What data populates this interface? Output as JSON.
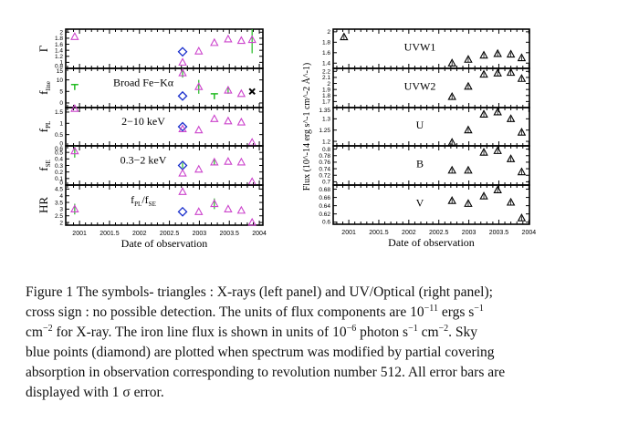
{
  "chart_data": [
    {
      "type": "scatter",
      "name": "xray-panel",
      "xlabel": "Date of observation",
      "xlim": [
        2000.77,
        2004.06
      ],
      "xticks": [
        "2001",
        "2001.5",
        "2002",
        "2002.5",
        "2003",
        "2003.5",
        "2004"
      ],
      "xtick_values": [
        2001,
        2001.5,
        2002,
        2002.5,
        2003,
        2003.5,
        2004
      ],
      "colors": {
        "triangle": "#cc44cc",
        "diamond": "#1a2fcc",
        "error": "#22bb22",
        "cross": "#000000"
      },
      "panels": [
        {
          "ylabel": "Γ",
          "ylabel_sub": "",
          "annotation": "",
          "ylim": [
            0.8,
            2.1
          ],
          "yticks": [
            "0.8",
            "1",
            "1.2",
            "1.4",
            "1.6",
            "1.8",
            "2"
          ],
          "ytick_values": [
            0.8,
            1,
            1.2,
            1.4,
            1.6,
            1.8,
            2
          ],
          "points": [
            {
              "x": 2000.92,
              "y": 1.85,
              "marker": "triangle"
            },
            {
              "x": 2002.72,
              "y": 1.35,
              "marker": "diamond"
            },
            {
              "x": 2002.72,
              "y": 1.0,
              "marker": "triangle"
            },
            {
              "x": 2002.99,
              "y": 1.37,
              "marker": "triangle"
            },
            {
              "x": 2003.25,
              "y": 1.65,
              "marker": "triangle"
            },
            {
              "x": 2003.48,
              "y": 1.77,
              "marker": "triangle"
            },
            {
              "x": 2003.7,
              "y": 1.72,
              "marker": "triangle"
            },
            {
              "x": 2003.88,
              "y": 1.75,
              "marker": "triangle",
              "err": [
                1.3,
                2.1
              ]
            }
          ]
        },
        {
          "ylabel": "f",
          "ylabel_sub": "line",
          "annotation": "Broad Fe−Kα",
          "ylim": [
            -2,
            15
          ],
          "yticks": [
            "0",
            "5",
            "10",
            "15"
          ],
          "ytick_values": [
            0,
            5,
            10,
            15
          ],
          "points": [
            {
              "x": 2000.92,
              "y": 8,
              "marker": "upper-limit"
            },
            {
              "x": 2002.72,
              "y": 13,
              "marker": "triangle",
              "err": [
                11,
                15
              ]
            },
            {
              "x": 2002.72,
              "y": 3,
              "marker": "diamond"
            },
            {
              "x": 2002.99,
              "y": 7,
              "marker": "triangle",
              "err": [
                4,
                10
              ]
            },
            {
              "x": 2003.25,
              "y": 4,
              "marker": "upper-limit"
            },
            {
              "x": 2003.48,
              "y": 5.5,
              "marker": "triangle",
              "err": [
                4,
                7
              ]
            },
            {
              "x": 2003.7,
              "y": 4,
              "marker": "triangle"
            },
            {
              "x": 2003.88,
              "y": 5,
              "marker": "cross"
            }
          ]
        },
        {
          "ylabel": "f",
          "ylabel_sub": "PL",
          "annotation": "2−10 keV",
          "ylim": [
            0,
            1.7
          ],
          "yticks": [
            "0",
            "0.5",
            "1",
            "1.5"
          ],
          "ytick_values": [
            0,
            0.5,
            1,
            1.5
          ],
          "points": [
            {
              "x": 2000.92,
              "y": 1.65,
              "marker": "triangle"
            },
            {
              "x": 2002.72,
              "y": 0.85,
              "marker": "diamond"
            },
            {
              "x": 2002.72,
              "y": 0.75,
              "marker": "triangle"
            },
            {
              "x": 2002.99,
              "y": 0.7,
              "marker": "triangle"
            },
            {
              "x": 2003.25,
              "y": 1.2,
              "marker": "triangle"
            },
            {
              "x": 2003.48,
              "y": 1.1,
              "marker": "triangle"
            },
            {
              "x": 2003.7,
              "y": 1.05,
              "marker": "triangle"
            },
            {
              "x": 2003.88,
              "y": 0.15,
              "marker": "triangle"
            }
          ]
        },
        {
          "ylabel": "f",
          "ylabel_sub": "SE",
          "annotation": "0.3−2 keV",
          "ylim": [
            0,
            0.6
          ],
          "yticks": [
            "0",
            "0.1",
            "0.2",
            "0.3",
            "0.4",
            "0.5",
            "0.6"
          ],
          "ytick_values": [
            0,
            0.1,
            0.2,
            0.3,
            0.4,
            0.5,
            0.6
          ],
          "points": [
            {
              "x": 2000.92,
              "y": 0.52,
              "marker": "triangle",
              "err": [
                0.42,
                0.6
              ]
            },
            {
              "x": 2002.72,
              "y": 0.3,
              "marker": "diamond",
              "err": [
                0.26,
                0.34
              ]
            },
            {
              "x": 2002.72,
              "y": 0.18,
              "marker": "triangle"
            },
            {
              "x": 2002.99,
              "y": 0.24,
              "marker": "triangle"
            },
            {
              "x": 2003.25,
              "y": 0.35,
              "marker": "triangle",
              "err": [
                0.3,
                0.4
              ]
            },
            {
              "x": 2003.48,
              "y": 0.36,
              "marker": "triangle"
            },
            {
              "x": 2003.7,
              "y": 0.35,
              "marker": "triangle"
            },
            {
              "x": 2003.88,
              "y": 0.05,
              "marker": "triangle"
            }
          ]
        },
        {
          "ylabel": "HR",
          "ylabel_sub": "",
          "annotation": "f_PL/f_SE",
          "annotation_parts": [
            "f",
            "PL",
            "/f",
            "SE"
          ],
          "ylim": [
            1.8,
            4.8
          ],
          "yticks": [
            "2",
            "2.5",
            "3",
            "3.5",
            "4",
            "4.5"
          ],
          "ytick_values": [
            2,
            2.5,
            3,
            3.5,
            4,
            4.5
          ],
          "points": [
            {
              "x": 2000.92,
              "y": 3.0,
              "marker": "triangle",
              "err": [
                2.6,
                3.4
              ]
            },
            {
              "x": 2002.72,
              "y": 4.3,
              "marker": "triangle"
            },
            {
              "x": 2002.72,
              "y": 2.8,
              "marker": "diamond"
            },
            {
              "x": 2002.99,
              "y": 2.8,
              "marker": "triangle"
            },
            {
              "x": 2003.25,
              "y": 3.4,
              "marker": "triangle",
              "err": [
                3.0,
                3.8
              ]
            },
            {
              "x": 2003.48,
              "y": 3.0,
              "marker": "triangle"
            },
            {
              "x": 2003.7,
              "y": 2.9,
              "marker": "triangle"
            },
            {
              "x": 2003.88,
              "y": 2.0,
              "marker": "triangle"
            }
          ]
        }
      ]
    },
    {
      "type": "scatter",
      "name": "uv-optical-panel",
      "xlabel": "Date of observation",
      "ylabel": "Flux (10^-14 erg s^-1 cm^-2 Å^-1)",
      "xlim": [
        2000.74,
        2004.01
      ],
      "xticks": [
        "2001",
        "2001.5",
        "2002",
        "2002.5",
        "2003",
        "2003.5",
        "2004"
      ],
      "xtick_values": [
        2001,
        2001.5,
        2002,
        2002.5,
        2003,
        2003.5,
        2004
      ],
      "colors": {
        "triangle": "#000000"
      },
      "panels": [
        {
          "annotation": "UVW1",
          "ylim": [
            1.3,
            2.05
          ],
          "yticks": [
            "1.4",
            "1.6",
            "1.8",
            "2"
          ],
          "ytick_values": [
            1.4,
            1.6,
            1.8,
            2
          ],
          "points": [
            {
              "x": 2000.92,
              "y": 1.9,
              "marker": "triangle"
            },
            {
              "x": 2002.72,
              "y": 1.4,
              "marker": "triangle"
            },
            {
              "x": 2002.99,
              "y": 1.47,
              "marker": "triangle"
            },
            {
              "x": 2003.25,
              "y": 1.55,
              "marker": "triangle"
            },
            {
              "x": 2003.48,
              "y": 1.58,
              "marker": "triangle"
            },
            {
              "x": 2003.7,
              "y": 1.57,
              "marker": "triangle"
            },
            {
              "x": 2003.88,
              "y": 1.5,
              "marker": "triangle"
            }
          ]
        },
        {
          "annotation": "UVW2",
          "ylim": [
            1.6,
            2.25
          ],
          "yticks": [
            "1.7",
            "1.8",
            "1.9",
            "2",
            "2.1",
            "2.2"
          ],
          "ytick_values": [
            1.7,
            1.8,
            1.9,
            2,
            2.1,
            2.2
          ],
          "points": [
            {
              "x": 2002.72,
              "y": 1.78,
              "marker": "triangle"
            },
            {
              "x": 2002.99,
              "y": 1.95,
              "marker": "triangle"
            },
            {
              "x": 2003.25,
              "y": 2.15,
              "marker": "triangle"
            },
            {
              "x": 2003.48,
              "y": 2.17,
              "marker": "triangle"
            },
            {
              "x": 2003.7,
              "y": 2.18,
              "marker": "triangle"
            },
            {
              "x": 2003.88,
              "y": 2.08,
              "marker": "triangle"
            }
          ]
        },
        {
          "annotation": "U",
          "ylim": [
            1.18,
            1.35
          ],
          "yticks": [
            "1.2",
            "1.25",
            "1.3",
            "1.35"
          ],
          "ytick_values": [
            1.2,
            1.25,
            1.3,
            1.35
          ],
          "points": [
            {
              "x": 2002.72,
              "y": 1.195,
              "marker": "triangle"
            },
            {
              "x": 2002.99,
              "y": 1.25,
              "marker": "triangle"
            },
            {
              "x": 2003.25,
              "y": 1.32,
              "marker": "triangle"
            },
            {
              "x": 2003.48,
              "y": 1.33,
              "marker": "triangle"
            },
            {
              "x": 2003.7,
              "y": 1.3,
              "marker": "triangle"
            },
            {
              "x": 2003.88,
              "y": 1.24,
              "marker": "triangle"
            }
          ]
        },
        {
          "annotation": "B",
          "ylim": [
            0.69,
            0.81
          ],
          "yticks": [
            "0.7",
            "0.72",
            "0.74",
            "0.76",
            "0.78",
            "0.8"
          ],
          "ytick_values": [
            0.7,
            0.72,
            0.74,
            0.76,
            0.78,
            0.8
          ],
          "points": [
            {
              "x": 2002.72,
              "y": 0.735,
              "marker": "triangle"
            },
            {
              "x": 2002.99,
              "y": 0.735,
              "marker": "triangle"
            },
            {
              "x": 2003.25,
              "y": 0.79,
              "marker": "triangle"
            },
            {
              "x": 2003.48,
              "y": 0.795,
              "marker": "triangle"
            },
            {
              "x": 2003.7,
              "y": 0.77,
              "marker": "triangle"
            },
            {
              "x": 2003.88,
              "y": 0.73,
              "marker": "triangle"
            }
          ]
        },
        {
          "annotation": "V",
          "ylim": [
            0.595,
            0.69
          ],
          "yticks": [
            "0.6",
            "0.62",
            "0.64",
            "0.66",
            "0.68"
          ],
          "ytick_values": [
            0.6,
            0.62,
            0.64,
            0.66,
            0.68
          ],
          "points": [
            {
              "x": 2002.72,
              "y": 0.652,
              "marker": "triangle"
            },
            {
              "x": 2002.99,
              "y": 0.645,
              "marker": "triangle"
            },
            {
              "x": 2003.25,
              "y": 0.663,
              "marker": "triangle"
            },
            {
              "x": 2003.48,
              "y": 0.678,
              "marker": "triangle"
            },
            {
              "x": 2003.7,
              "y": 0.648,
              "marker": "triangle"
            },
            {
              "x": 2003.88,
              "y": 0.61,
              "marker": "triangle"
            }
          ]
        }
      ]
    }
  ],
  "caption": {
    "lines": [
      [
        {
          "t": "Figure 1 The symbols- triangles :  X-rays (left panel) and UV/Optical (right panel);"
        }
      ],
      [
        {
          "t": "cross sign : no possible detection.  The units of flux components are 10"
        },
        {
          "t": "−11",
          "sup": true
        },
        {
          "t": " ergs s"
        },
        {
          "t": "−1",
          "sup": true
        }
      ],
      [
        {
          "t": "cm"
        },
        {
          "t": "−2",
          "sup": true
        },
        {
          "t": " for X-ray.  The iron line flux is shown in units of 10"
        },
        {
          "t": "−6",
          "sup": true
        },
        {
          "t": " photon s"
        },
        {
          "t": "−1",
          "sup": true
        },
        {
          "t": " cm"
        },
        {
          "t": "−2",
          "sup": true
        },
        {
          "t": ".  Sky"
        }
      ],
      [
        {
          "t": "blue points (diamond) are plotted when spectrum was modified by partial covering"
        }
      ],
      [
        {
          "t": "absorption in observation corresponding to revolution number 512.  All error bars are"
        }
      ],
      [
        {
          "t": "displayed with 1 σ error."
        }
      ]
    ]
  }
}
